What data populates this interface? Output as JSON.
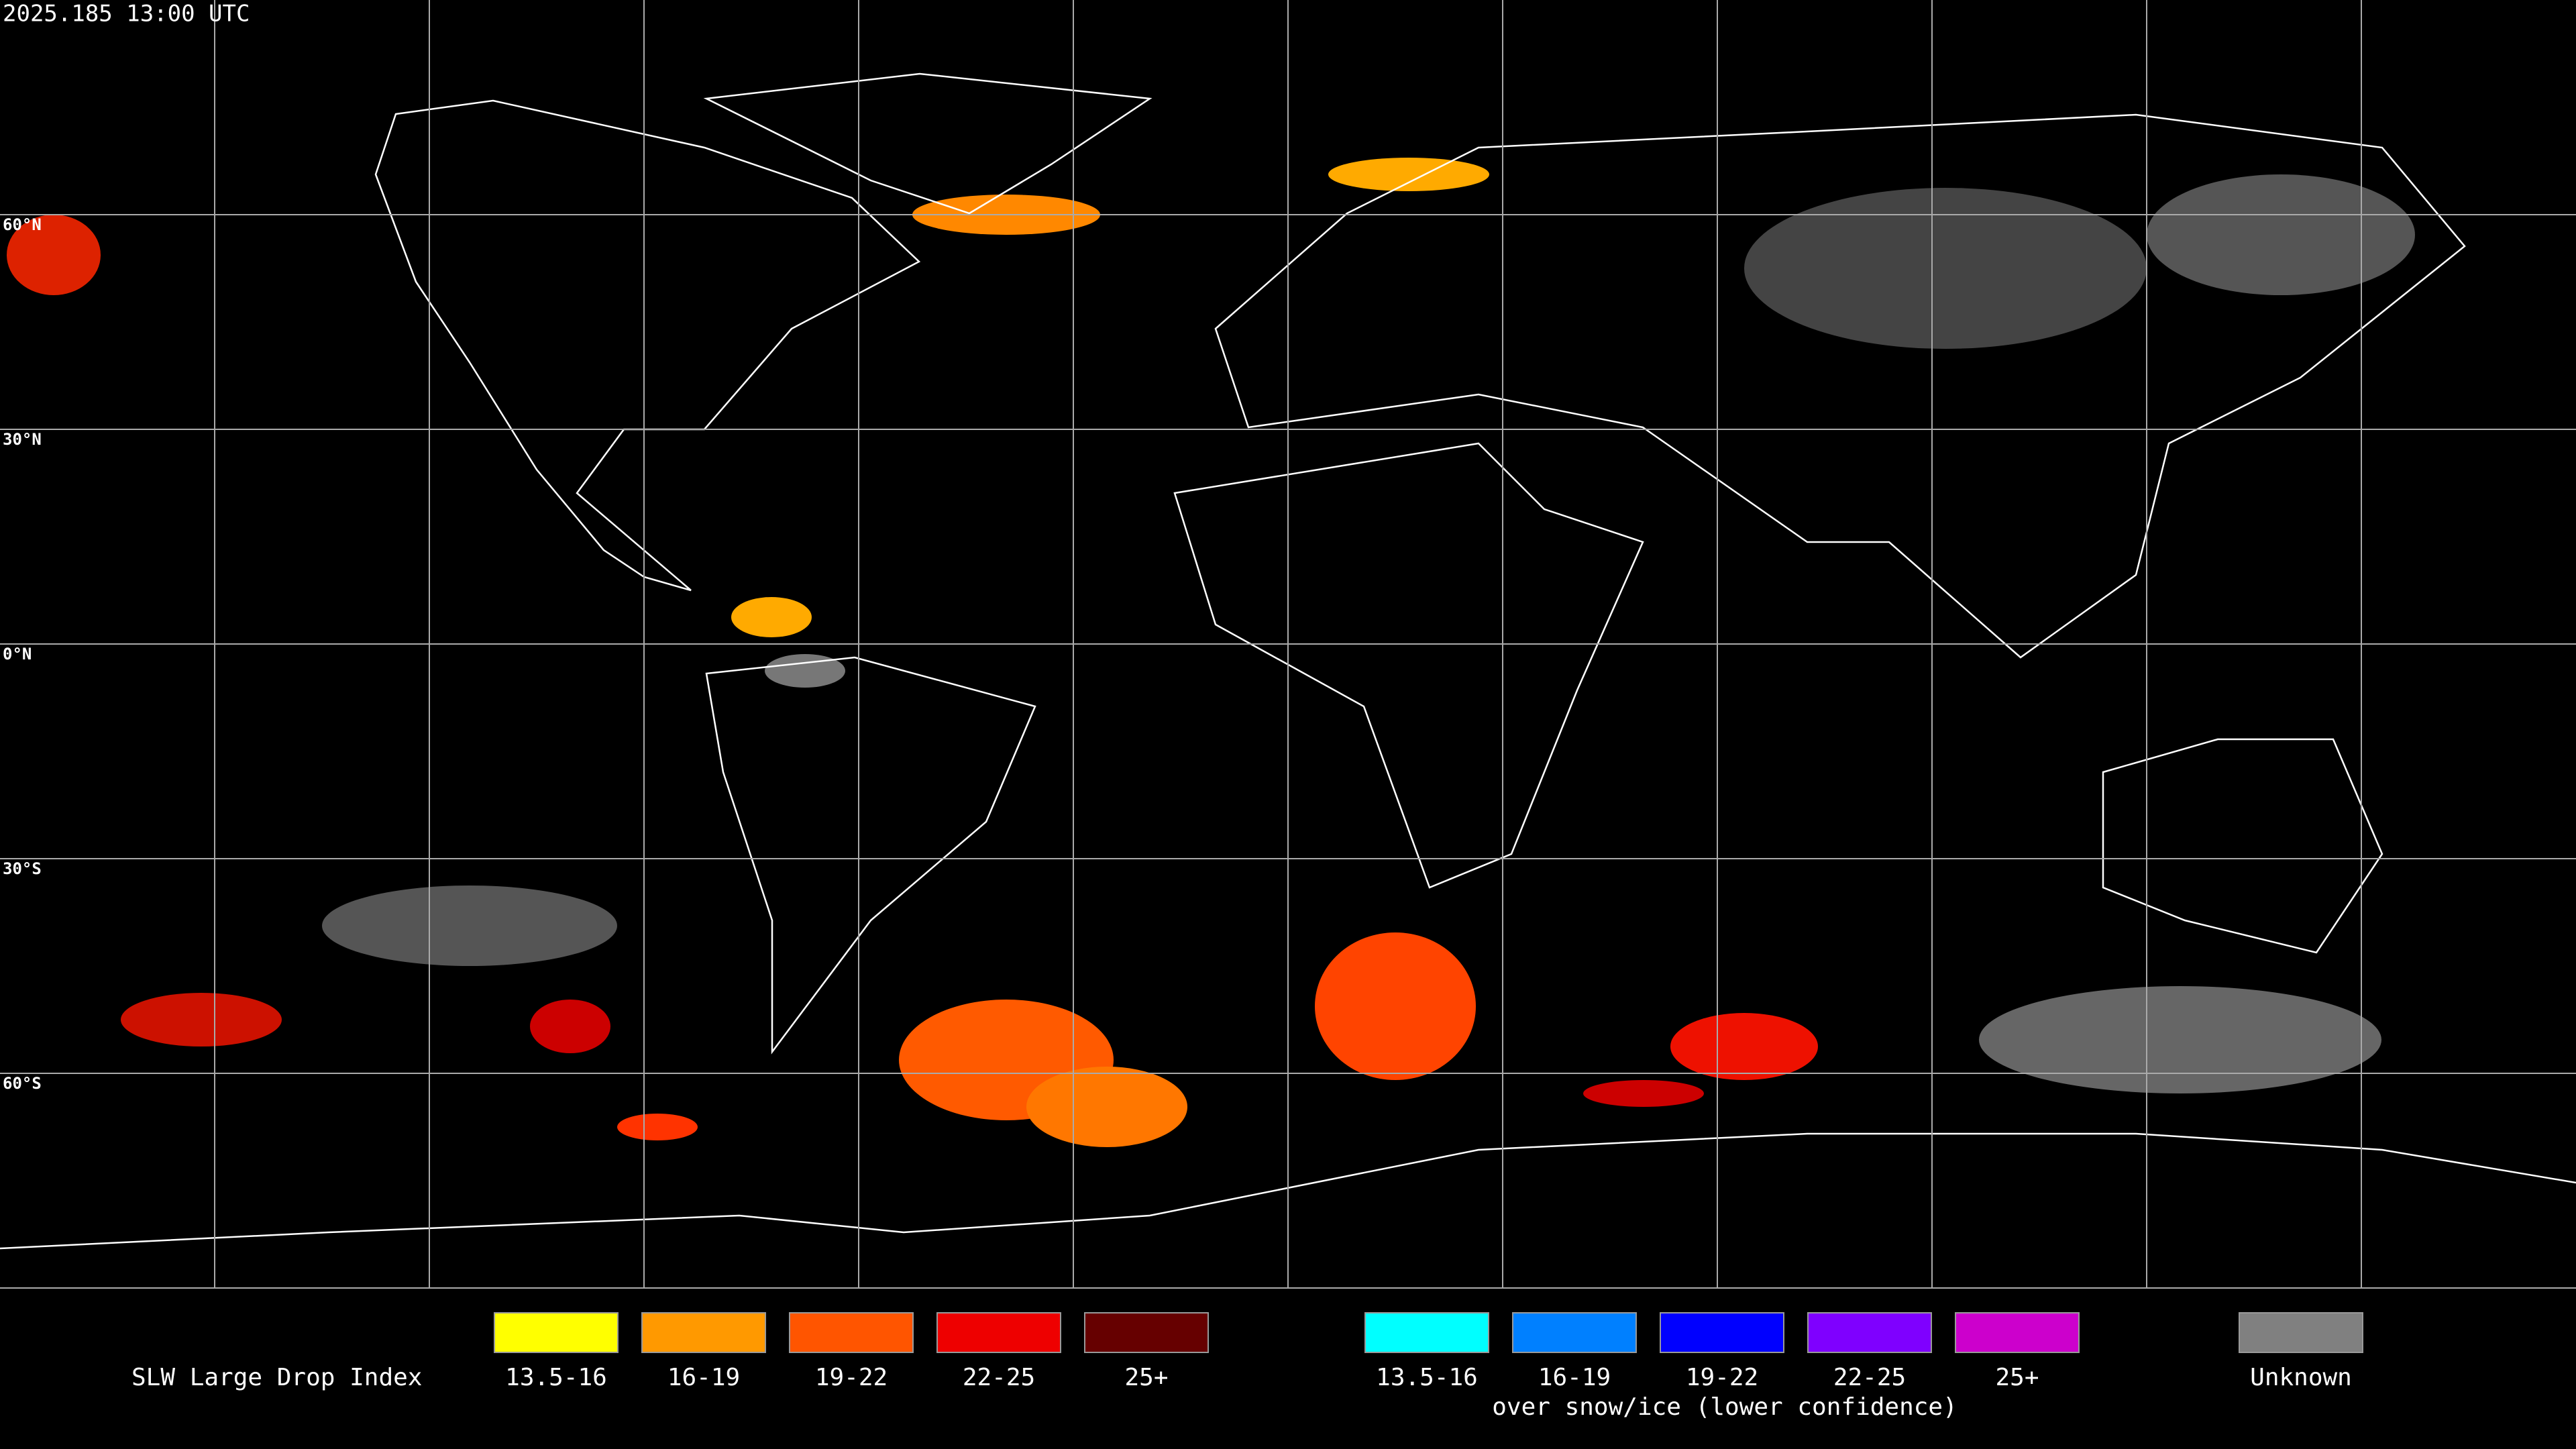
{
  "timestamp": "2025.185 13:00 UTC",
  "latitude_labels": [
    "60°N",
    "30°N",
    "0°N",
    "30°S",
    "60°S"
  ],
  "legend": {
    "title": "SLW Large Drop Index",
    "standard": [
      {
        "label": "13.5-16",
        "color": "#ffff00"
      },
      {
        "label": "16-19",
        "color": "#ff9900"
      },
      {
        "label": "19-22",
        "color": "#ff5500"
      },
      {
        "label": "22-25",
        "color": "#ee0000"
      },
      {
        "label": "25+",
        "color": "#660000"
      }
    ],
    "snow_ice": [
      {
        "label": "13.5-16",
        "color": "#00ffff"
      },
      {
        "label": "16-19",
        "color": "#0080ff"
      },
      {
        "label": "19-22",
        "color": "#0000ff"
      },
      {
        "label": "22-25",
        "color": "#7f00ff"
      },
      {
        "label": "25+",
        "color": "#cc00cc"
      }
    ],
    "snow_ice_caption": "over snow/ice (lower confidence)",
    "unknown": {
      "label": "Unknown",
      "color": "#808080"
    }
  }
}
